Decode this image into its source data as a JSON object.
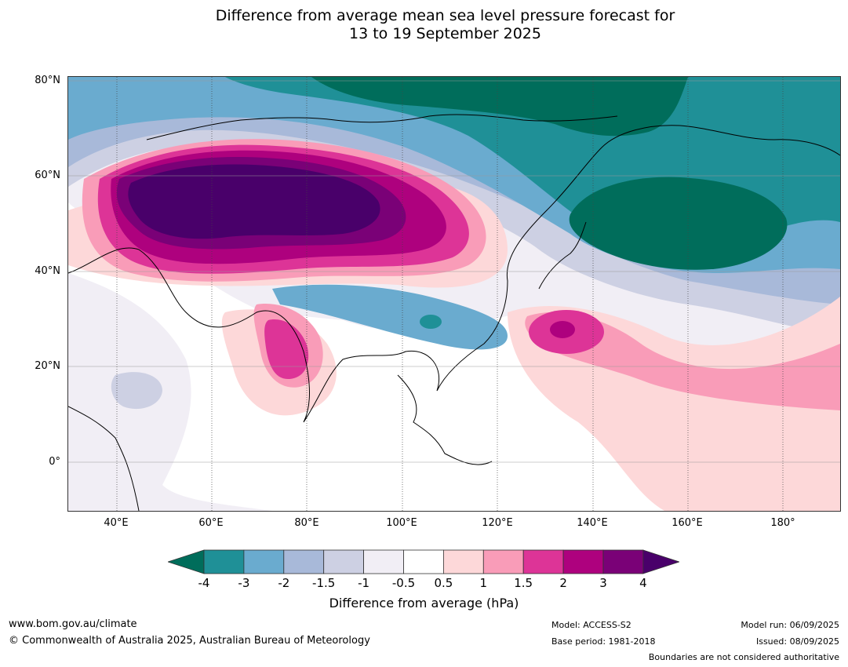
{
  "title": {
    "line1": "Difference from average mean sea level pressure forecast for",
    "line2": "13 to 19 September 2025"
  },
  "latitude_labels": [
    "80°N",
    "60°N",
    "40°N",
    "20°N",
    "0°"
  ],
  "longitude_labels": [
    "40°E",
    "60°E",
    "80°E",
    "100°E",
    "120°E",
    "140°E",
    "160°E",
    "180°"
  ],
  "colorbar": {
    "title": "Difference from average (hPa)",
    "tick_labels": [
      "-4",
      "-3",
      "-2",
      "-1.5",
      "-1",
      "-0.5",
      "0.5",
      "1",
      "1.5",
      "2",
      "3",
      "4"
    ],
    "colors": [
      "#006d5b",
      "#1f9097",
      "#6aabcf",
      "#a8b9d9",
      "#cdd0e3",
      "#f1eef5",
      "#ffffff",
      "#fdd8d9",
      "#f99cb8",
      "#dd3497",
      "#ae017e",
      "#7a0177",
      "#49006a"
    ]
  },
  "footer": {
    "website": "www.bom.gov.au/climate",
    "copyright": "© Commonwealth of Australia 2025, Australian Bureau of Meteorology",
    "model": "Model: ACCESS-S2",
    "base_period": "Base period: 1981-2018",
    "model_run": "Model run: 06/09/2025",
    "issued": "Issued: 08/09/2025",
    "disclaimer": "Boundaries are not considered authoritative"
  }
}
